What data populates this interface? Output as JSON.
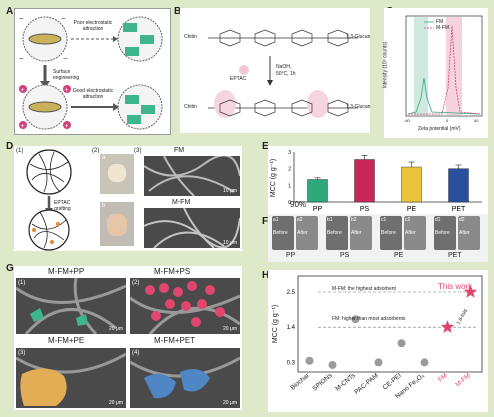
{
  "panel_labels": {
    "a": "A",
    "b": "B",
    "c": "C",
    "d": "D",
    "e": "E",
    "f": "F",
    "g": "G",
    "h": "H"
  },
  "panelA": {
    "poor": "Poor electrostatic attraction",
    "good": "Good electrostatic attraction",
    "surface": "Surface engineering",
    "chip": "EP"
  },
  "panelB": {
    "chitin": "Chitin",
    "glucan": "1,3-Glucan",
    "reagent": "EPTAC",
    "cond1": "NaOH,",
    "cond2": "50°C, 1h"
  },
  "panelC": {
    "ylabel": "Intensity (10⁵ counts)",
    "xlabel": "Zeta potential (mV)",
    "legend": [
      "FM",
      "M-FM"
    ],
    "xticks": [
      "-60",
      "-40",
      "-20",
      "0",
      "20",
      "40"
    ],
    "yticks": [
      "0",
      "2",
      "4",
      "6",
      "8"
    ]
  },
  "panelD": {
    "labels": [
      "(1)",
      "(2)",
      "(3)"
    ],
    "sub": [
      "a",
      "b"
    ],
    "fm": "FM",
    "mfm": "M-FM",
    "eptac": "EPTAC",
    "grafting": "grafting",
    "scale": "10 μm"
  },
  "panelF": {
    "pairs": [
      {
        "ids": [
          "a1",
          "a2"
        ],
        "label": "PP"
      },
      {
        "ids": [
          "b1",
          "b2"
        ],
        "label": "PS"
      },
      {
        "ids": [
          "c1",
          "c2"
        ],
        "label": "PE"
      },
      {
        "ids": [
          "d1",
          "d2"
        ],
        "label": "PET"
      }
    ],
    "before": "Before",
    "after": "After",
    "percent": "90%"
  },
  "panelG": {
    "titles": [
      "M-FM+PP",
      "M-FM+PS",
      "M-FM+PE",
      "M-FM+PET"
    ],
    "nums": [
      "(1)",
      "(2)",
      "(3)",
      "(4)"
    ],
    "scale": "20 μm"
  },
  "panelH": {
    "ylabel": "MCC (g g⁻¹)",
    "this_work": "This work",
    "line1": "M-FM: the highest adsorbent",
    "line2": "FM: higher than most adsorbents",
    "fold": "1.6-fold",
    "categories": [
      "Biochar",
      "SPIONs",
      "M-CNTs",
      "PAC-PAM",
      "CE-PEI",
      "Nano Fe₃O₄",
      "FM",
      "M-FM"
    ],
    "yticks": [
      "0.3",
      "1.4",
      "2.5"
    ]
  },
  "chart_data": [
    {
      "type": "bar",
      "title": "",
      "ylabel": "MCC (g g⁻¹)",
      "categories": [
        "PP",
        "PS",
        "PE",
        "PET"
      ],
      "values": [
        1.35,
        2.55,
        2.1,
        2.0
      ],
      "errors": [
        0.1,
        0.25,
        0.3,
        0.22
      ],
      "ylim": [
        0,
        3
      ],
      "yticks": [
        "0",
        "1",
        "2",
        "3"
      ],
      "colors": [
        "#2fa87c",
        "#c8275a",
        "#e8c53b",
        "#2a4f9e"
      ]
    },
    {
      "type": "scatter",
      "ylabel": "MCC (g g⁻¹)",
      "categories": [
        "Biochar",
        "SPIONs",
        "M-CNTs",
        "PAC-PAM",
        "CE-PEI",
        "Nano Fe₃O₄",
        "FM",
        "M-FM"
      ],
      "values": [
        0.35,
        0.22,
        1.65,
        0.3,
        0.9,
        0.3,
        1.4,
        2.5
      ],
      "ylim": [
        0,
        3
      ]
    }
  ]
}
